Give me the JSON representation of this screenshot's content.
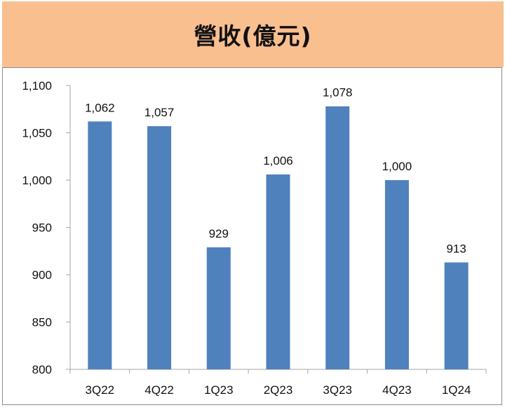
{
  "header": {
    "title": "營收(億元)"
  },
  "colors": {
    "header_bg": "#f9bf8f",
    "bar": "#4f81bd",
    "axis": "#a6a6a6",
    "text": "#111111"
  },
  "chart_data": {
    "type": "bar",
    "title": "營收(億元)",
    "xlabel": "",
    "ylabel": "",
    "categories": [
      "3Q22",
      "4Q22",
      "1Q23",
      "2Q23",
      "3Q23",
      "4Q23",
      "1Q24"
    ],
    "values": [
      1062,
      1057,
      929,
      1006,
      1078,
      1000,
      913
    ],
    "value_labels": [
      "1,062",
      "1,057",
      "929",
      "1,006",
      "1,078",
      "1,000",
      "913"
    ],
    "ylim": [
      800,
      1100
    ],
    "yticks": [
      800,
      850,
      900,
      950,
      1000,
      1050,
      1100
    ],
    "ytick_labels": [
      "800",
      "850",
      "900",
      "950",
      "1,000",
      "1,050",
      "1,100"
    ],
    "grid": false,
    "legend": "none"
  }
}
